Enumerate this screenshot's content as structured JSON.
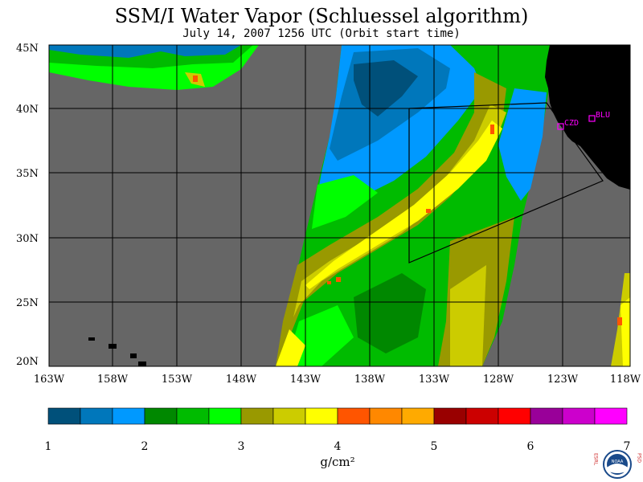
{
  "title": "SSM/I Water Vapor (Schluessel algorithm)",
  "subtitle": "July 14, 2007  1256 UTC  (Orbit start time)",
  "map": {
    "lon_ticks": [
      "163W",
      "158W",
      "153W",
      "148W",
      "143W",
      "138W",
      "133W",
      "128W",
      "123W",
      "118W"
    ],
    "lat_ticks": [
      "45N",
      "40N",
      "35N",
      "30N",
      "25N",
      "20N"
    ],
    "stations": [
      {
        "id": "CZD"
      },
      {
        "id": "BLU"
      }
    ],
    "land_color": "#000000",
    "no_data_color": "#666666",
    "station_color": "#ff00ff"
  },
  "colorbar": {
    "ticks": [
      "1",
      "2",
      "3",
      "4",
      "5",
      "6",
      "7"
    ],
    "units": "g/cm²",
    "colors": [
      "#00507a",
      "#0077bb",
      "#0099ff",
      "#008800",
      "#00bb00",
      "#00ff00",
      "#999900",
      "#cccc00",
      "#ffff00",
      "#ff5500",
      "#ff8800",
      "#ffaa00",
      "#990000",
      "#cc0000",
      "#ff0000",
      "#990099",
      "#cc00cc",
      "#ff00ff"
    ]
  },
  "logo": {
    "left_text": "ESRL",
    "right_text": "PSD",
    "center_text": "NOAA"
  }
}
